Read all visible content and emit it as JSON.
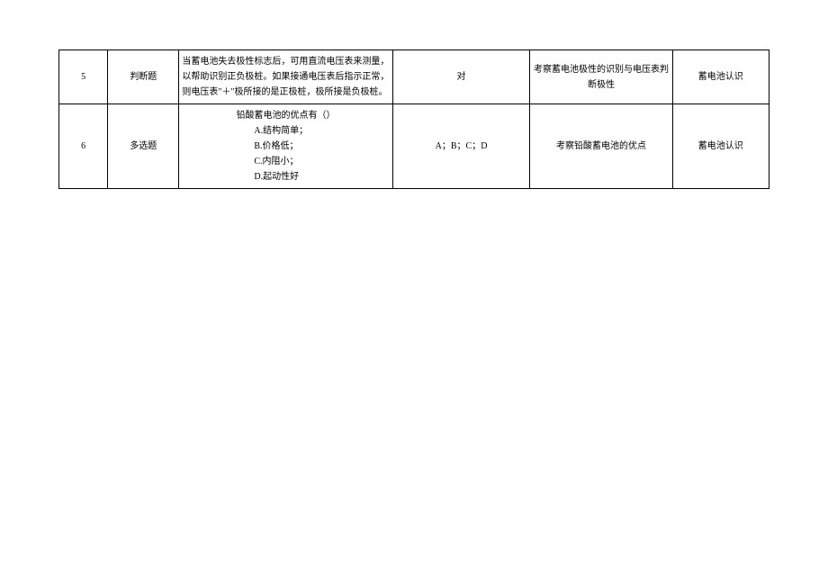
{
  "table": {
    "rows": [
      {
        "num": "5",
        "type": "判断题",
        "question_text": "当蓄电池失去极性标志后，可用直流电压表来测量，以帮助识别正负极桩。如果接通电压表后指示正常，则电压表\"＋\"极所接的是正极桩，极所接是负极桩。",
        "answer": "对",
        "exam_point": "考察蓄电池极性的识别与电压表判断极性",
        "knowledge": "蓄电池认识"
      },
      {
        "num": "6",
        "type": "多选题",
        "question_head": "铅酸蓄电池的优点有（）",
        "options": [
          "A.结构简单；",
          "B.价格低；",
          "C.内阻小；",
          "D.起动性好"
        ],
        "answer": "A；B；C；D",
        "exam_point": "考察铅酸蓄电池的优点",
        "knowledge": "蓄电池认识"
      }
    ]
  }
}
